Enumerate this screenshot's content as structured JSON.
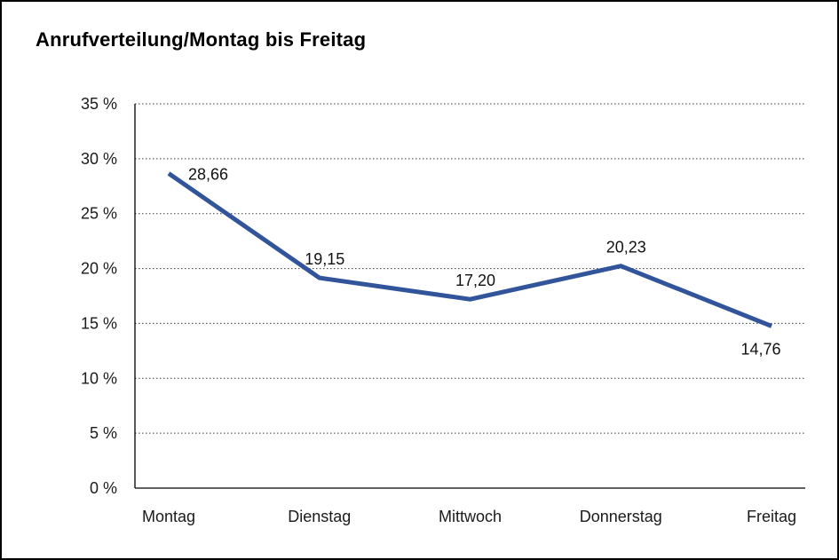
{
  "chart_data": {
    "type": "line",
    "title": "Anrufverteilung/Montag bis Freitag",
    "categories": [
      "Montag",
      "Dienstag",
      "Mittwoch",
      "Donnerstag",
      "Freitag"
    ],
    "values": [
      28.66,
      19.15,
      17.2,
      20.23,
      14.76
    ],
    "points": [
      {
        "category": "Montag",
        "value": 28.66,
        "label": "28,66",
        "label_position": "right"
      },
      {
        "category": "Dienstag",
        "value": 19.15,
        "label": "19,15",
        "label_position": "above"
      },
      {
        "category": "Mittwoch",
        "value": 17.2,
        "label": "17,20",
        "label_position": "above"
      },
      {
        "category": "Donnerstag",
        "value": 20.23,
        "label": "20,23",
        "label_position": "above"
      },
      {
        "category": "Freitag",
        "value": 14.76,
        "label": "14,76",
        "label_position": "below"
      }
    ],
    "ylim": [
      0,
      35
    ],
    "yticks": [
      {
        "value": 0,
        "label": "0 %"
      },
      {
        "value": 5,
        "label": "5 %"
      },
      {
        "value": 10,
        "label": "10 %"
      },
      {
        "value": 15,
        "label": "15 %"
      },
      {
        "value": 20,
        "label": "20 %"
      },
      {
        "value": 25,
        "label": "25 %"
      },
      {
        "value": 30,
        "label": "30 %"
      },
      {
        "value": 35,
        "label": "35 %"
      }
    ],
    "xlabel": "",
    "ylabel": "",
    "legend": "none",
    "grid": {
      "horizontal": true,
      "style": "dotted"
    },
    "colors": {
      "line": "#31549B",
      "axis": "#000000",
      "grid": "#3a3a3a",
      "text": "#1a1a1a",
      "background": "#ffffff",
      "border": "#000000"
    }
  }
}
